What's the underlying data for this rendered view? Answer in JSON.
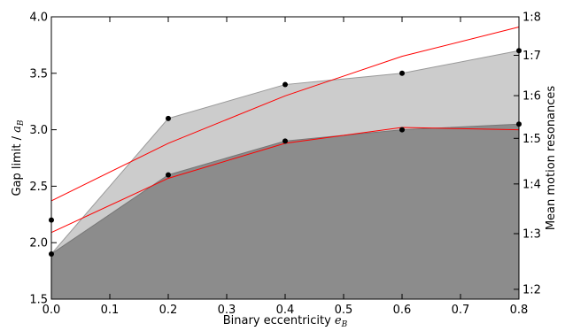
{
  "chart_data": {
    "type": "area",
    "xlabel": {
      "text": "Binary eccentricity ",
      "math": "e",
      "sub": "B"
    },
    "ylabel": {
      "text": "Gap limit / ",
      "math": "a",
      "sub": "B"
    },
    "y2label": "Mean motion resonances",
    "xlim": [
      0.0,
      0.8
    ],
    "ylim": [
      1.5,
      4.0
    ],
    "x_ticks": [
      0.0,
      0.1,
      0.2,
      0.3,
      0.4,
      0.5,
      0.6,
      0.7,
      0.8
    ],
    "x_tick_labels": [
      "0.0",
      "0.1",
      "0.2",
      "0.3",
      "0.4",
      "0.5",
      "0.6",
      "0.7",
      "0.8"
    ],
    "y_ticks": [
      1.5,
      2.0,
      2.5,
      3.0,
      3.5,
      4.0
    ],
    "y_tick_labels": [
      "1.5",
      "2.0",
      "2.5",
      "3.0",
      "3.5",
      "4.0"
    ],
    "y2_ticks": [
      {
        "label": "1:2",
        "value": 1.587
      },
      {
        "label": "1:3",
        "value": 2.08
      },
      {
        "label": "1:4",
        "value": 2.52
      },
      {
        "label": "1:5",
        "value": 2.924
      },
      {
        "label": "1:6",
        "value": 3.302
      },
      {
        "label": "1:7",
        "value": 3.659
      },
      {
        "label": "1:8",
        "value": 4.0
      }
    ],
    "x": [
      0.0,
      0.2,
      0.4,
      0.6,
      0.8
    ],
    "series": [
      {
        "kind": "area",
        "role": "upper",
        "color": "#cccccc",
        "edge": "#999999",
        "values": [
          1.9,
          3.1,
          3.4,
          3.5,
          3.7
        ]
      },
      {
        "kind": "area",
        "role": "lower",
        "color": "#8c8c8c",
        "edge": "#777777",
        "values": [
          1.9,
          2.6,
          2.9,
          3.0,
          3.05
        ]
      },
      {
        "kind": "points",
        "color": "#000000",
        "values": [
          2.2,
          3.1,
          3.4,
          3.5,
          3.7
        ]
      },
      {
        "kind": "points",
        "color": "#000000",
        "values": [
          1.9,
          2.6,
          2.9,
          3.0,
          3.05
        ]
      },
      {
        "kind": "line",
        "color": "#ff0000",
        "values": [
          2.37,
          2.88,
          3.3,
          3.65,
          3.91
        ]
      },
      {
        "kind": "line",
        "color": "#ff0000",
        "values": [
          2.09,
          2.57,
          2.88,
          3.02,
          3.0
        ]
      }
    ]
  }
}
